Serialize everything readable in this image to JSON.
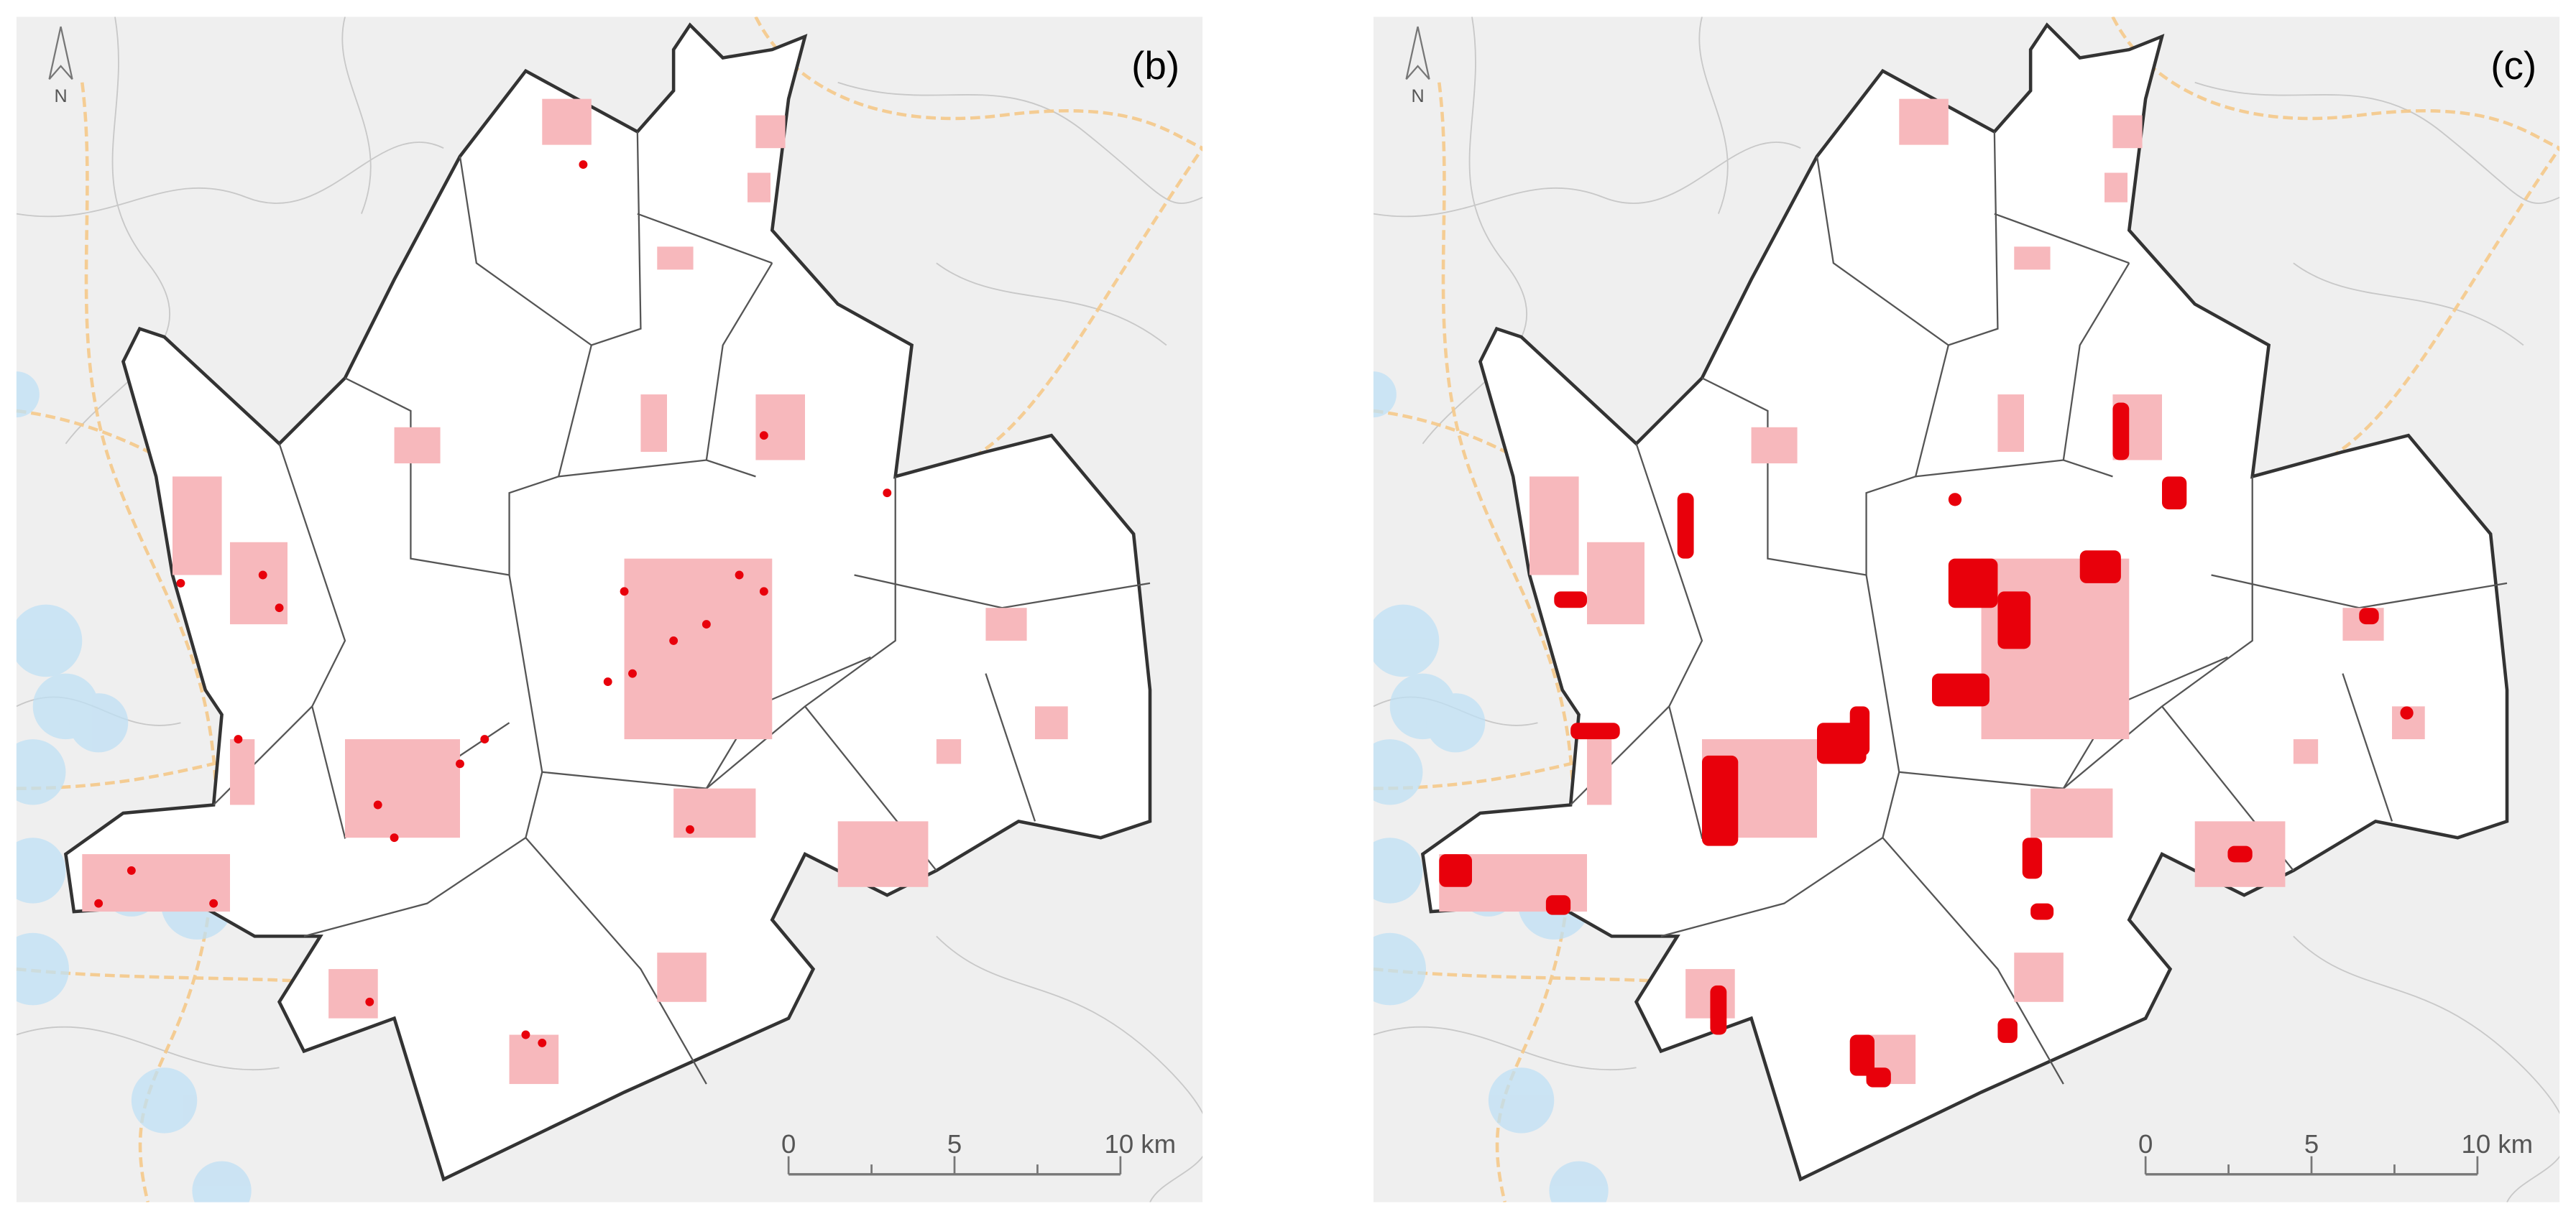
{
  "panels": [
    {
      "label": "(b)",
      "north": "N",
      "scale": [
        "0",
        "5",
        "10 km"
      ]
    },
    {
      "label": "(c)",
      "north": "N",
      "scale": [
        "0",
        "5",
        "10 km"
      ]
    }
  ]
}
